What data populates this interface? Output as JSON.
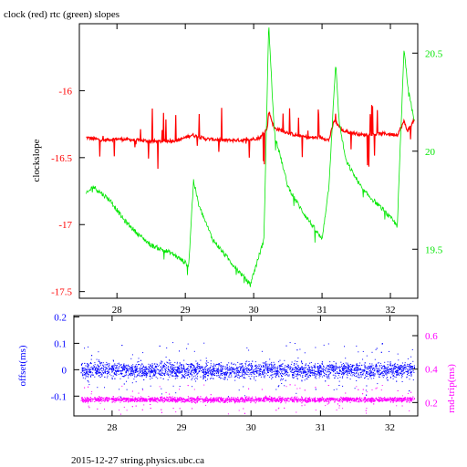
{
  "title": "clock (red) rtc (green) slopes",
  "footer": "2015-12-27 string.physics.ubc.ca",
  "colors": {
    "clock": "#ff0000",
    "rtc": "#00e600",
    "offset": "#0000ff",
    "rndtrip": "#ff00ff",
    "axis": "#000000"
  },
  "chart_data": [
    {
      "type": "line",
      "title": "clock (red) rtc (green) slopes",
      "ylabel": "clockslope",
      "y2label": "",
      "x_ticks": [
        28,
        29,
        30,
        31,
        32
      ],
      "xlim": [
        27.45,
        32.4
      ],
      "ylim": [
        -17.55,
        -15.5
      ],
      "y_ticks": [
        -16,
        -16.5,
        -17,
        -17.5
      ],
      "y2lim": [
        19.25,
        20.65
      ],
      "y2_ticks": [
        20.5,
        20,
        19.5
      ],
      "series": [
        {
          "name": "clock (red)",
          "axis": "left",
          "x": [
            27.55,
            27.8,
            28.0,
            28.3,
            28.6,
            28.9,
            29.1,
            29.3,
            29.6,
            29.9,
            30.1,
            30.2,
            30.22,
            30.3,
            30.6,
            30.8,
            31.0,
            31.1,
            31.18,
            31.3,
            31.6,
            31.9,
            32.1,
            32.2,
            32.25,
            32.35
          ],
          "y": [
            -16.35,
            -16.37,
            -16.36,
            -16.37,
            -16.38,
            -16.37,
            -16.33,
            -16.36,
            -16.37,
            -16.37,
            -16.35,
            -16.28,
            -16.15,
            -16.28,
            -16.33,
            -16.35,
            -16.35,
            -16.37,
            -16.22,
            -16.3,
            -16.33,
            -16.32,
            -16.33,
            -16.23,
            -16.3,
            -16.22
          ]
        },
        {
          "name": "rtc (green)",
          "axis": "right",
          "x": [
            27.55,
            27.65,
            27.9,
            28.1,
            28.3,
            28.5,
            28.8,
            29.05,
            29.12,
            29.2,
            29.4,
            29.7,
            29.95,
            30.15,
            30.22,
            30.3,
            30.5,
            30.7,
            31.0,
            31.1,
            31.2,
            31.25,
            31.35,
            31.6,
            31.9,
            32.1,
            32.2,
            32.25,
            32.35
          ],
          "y": [
            19.78,
            19.82,
            19.75,
            19.65,
            19.58,
            19.52,
            19.48,
            19.42,
            19.85,
            19.72,
            19.55,
            19.42,
            19.32,
            19.55,
            20.65,
            20.1,
            19.82,
            19.7,
            19.55,
            19.82,
            20.45,
            20.15,
            19.95,
            19.8,
            19.7,
            19.62,
            20.52,
            20.35,
            20.15
          ]
        }
      ]
    },
    {
      "type": "scatter",
      "ylabel": "offset(ms)",
      "y2label": "rnd-trip(ms)",
      "x_ticks": [
        28,
        29,
        30,
        31,
        32
      ],
      "xlim": [
        27.45,
        32.4
      ],
      "ylim": [
        -0.175,
        0.205
      ],
      "y_ticks": [
        0.2,
        0.1,
        0,
        -0.1
      ],
      "y_tick_labels": [
        "0.2",
        "0.1",
        "0",
        "-0.1"
      ],
      "y2lim": [
        0.12,
        0.72
      ],
      "y2_ticks": [
        0.6,
        0.4,
        0.2
      ],
      "series": [
        {
          "name": "offset(ms)",
          "axis": "left",
          "center": 0.0,
          "spread": 0.03
        },
        {
          "name": "rnd-trip(ms)",
          "axis": "right",
          "center": 0.22,
          "spread": 0.015
        }
      ]
    }
  ]
}
